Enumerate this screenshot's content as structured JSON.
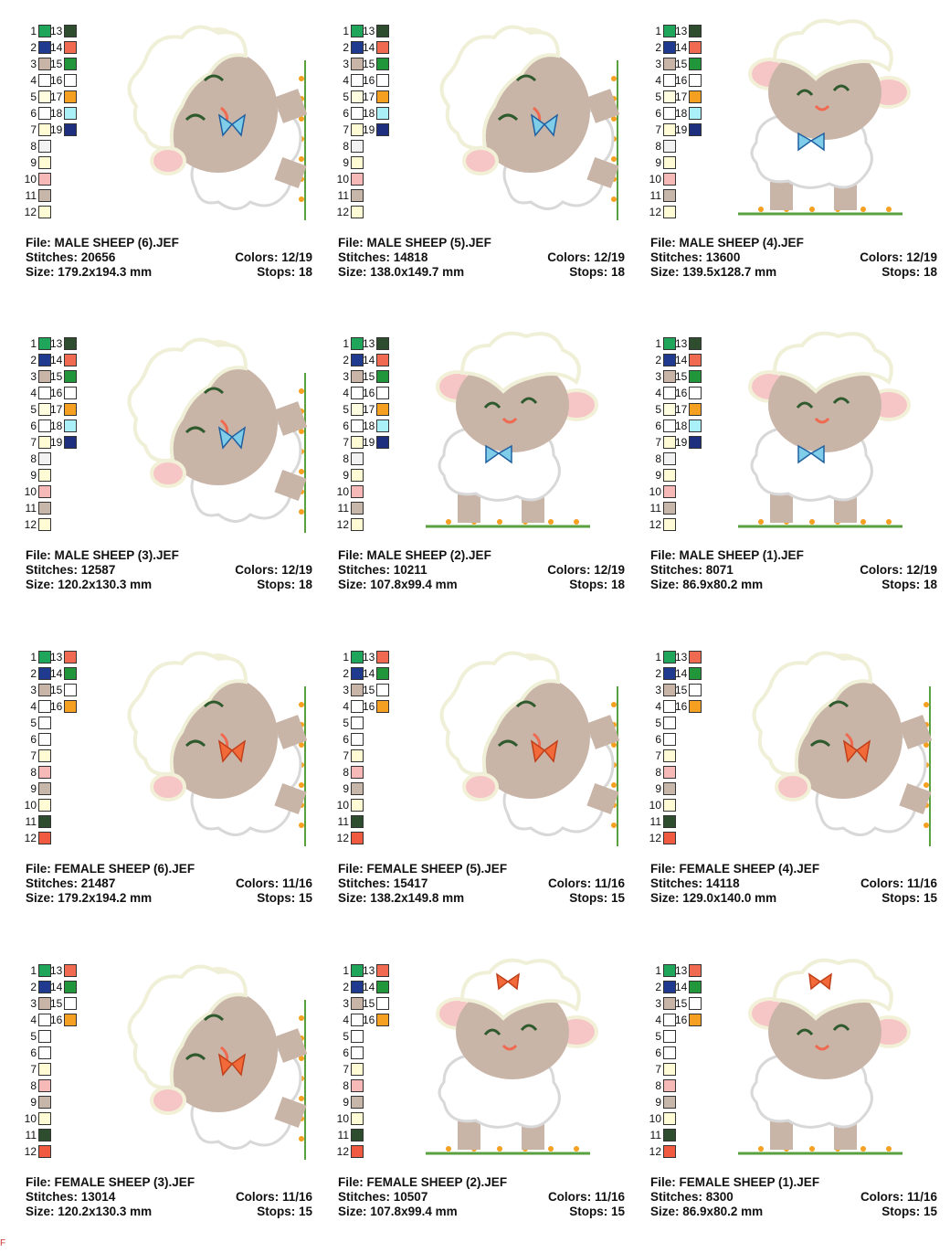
{
  "swatch_colors": {
    "1": "#1fa65a",
    "2": "#1f3a8f",
    "3": "#c9b5a8",
    "4": "#ffffff",
    "5": "#fffde0",
    "6": "#ffffff",
    "7": "#fffbd5",
    "8": "#f2f2f2",
    "9": "#fffbd5",
    "10": "#f7b8b8",
    "11": "#c7b6aa",
    "12": "#fffbd5",
    "13": "#2e4d2e",
    "14": "#ef6a50",
    "15": "#22963a",
    "16": "#ffffff",
    "17": "#f5a020",
    "18": "#aaf0f8",
    "19": "#1f2f80",
    "f5": "#ffffff",
    "f6": "#ffffff",
    "f7": "#fffbd5",
    "f8": "#f7b8b8",
    "f9": "#c7b6aa",
    "f10": "#fffbd5",
    "f11": "#2e4d2e",
    "f12": "#ef5a40",
    "f13": "#ef6a50",
    "f14": "#22963a",
    "f15": "#ffffff",
    "f16": "#f5a020"
  },
  "labels": {
    "file": "File:",
    "stitches": "Stitches:",
    "size": "Size:",
    "colors": "Colors:",
    "stops": "Stops:"
  },
  "designs": [
    {
      "file": "MALE SHEEP (6).JEF",
      "stitches": "20656",
      "size": "179.2x194.3 mm",
      "colors": "12/19",
      "stops": "18",
      "gender": "male",
      "pose": "peek"
    },
    {
      "file": "MALE SHEEP (5).JEF",
      "stitches": "14818",
      "size": "138.0x149.7 mm",
      "colors": "12/19",
      "stops": "18",
      "gender": "male",
      "pose": "peek"
    },
    {
      "file": "MALE SHEEP (4).JEF",
      "stitches": "13600",
      "size": "139.5x128.7 mm",
      "colors": "12/19",
      "stops": "18",
      "gender": "male",
      "pose": "stand"
    },
    {
      "file": "MALE SHEEP (3).JEF",
      "stitches": "12587",
      "size": "120.2x130.3 mm",
      "colors": "12/19",
      "stops": "18",
      "gender": "male",
      "pose": "peek"
    },
    {
      "file": "MALE SHEEP (2).JEF",
      "stitches": "10211",
      "size": "107.8x99.4 mm",
      "colors": "12/19",
      "stops": "18",
      "gender": "male",
      "pose": "stand"
    },
    {
      "file": "MALE SHEEP (1).JEF",
      "stitches": "8071",
      "size": "86.9x80.2 mm",
      "colors": "12/19",
      "stops": "18",
      "gender": "male",
      "pose": "stand"
    },
    {
      "file": "FEMALE SHEEP (6).JEF",
      "stitches": "21487",
      "size": "179.2x194.2 mm",
      "colors": "11/16",
      "stops": "15",
      "gender": "female",
      "pose": "peek"
    },
    {
      "file": "FEMALE SHEEP (5).JEF",
      "stitches": "15417",
      "size": "138.2x149.8 mm",
      "colors": "11/16",
      "stops": "15",
      "gender": "female",
      "pose": "peek"
    },
    {
      "file": "FEMALE SHEEP (4).JEF",
      "stitches": "14118",
      "size": "129.0x140.0 mm",
      "colors": "11/16",
      "stops": "15",
      "gender": "female",
      "pose": "peek"
    },
    {
      "file": "FEMALE SHEEP (3).JEF",
      "stitches": "13014",
      "size": "120.2x130.3 mm",
      "colors": "11/16",
      "stops": "15",
      "gender": "female",
      "pose": "peek"
    },
    {
      "file": "FEMALE SHEEP (2).JEF",
      "stitches": "10507",
      "size": "107.8x99.4 mm",
      "colors": "11/16",
      "stops": "15",
      "gender": "female",
      "pose": "stand"
    },
    {
      "file": "FEMALE SHEEP (1).JEF",
      "stitches": "8300",
      "size": "86.9x80.2 mm",
      "colors": "11/16",
      "stops": "15",
      "gender": "female",
      "pose": "stand"
    }
  ],
  "palettes": {
    "male": {
      "left": [
        "1",
        "2",
        "3",
        "4",
        "5",
        "6",
        "7",
        "8",
        "9",
        "10",
        "11",
        "12"
      ],
      "right": [
        "13",
        "14",
        "15",
        "16",
        "17",
        "18",
        "19"
      ],
      "left_colors": [
        "1",
        "2",
        "3",
        "4",
        "5",
        "6",
        "7",
        "8",
        "9",
        "10",
        "11",
        "12"
      ],
      "right_colors": [
        "13",
        "14",
        "15",
        "16",
        "17",
        "18",
        "19"
      ]
    },
    "female": {
      "left": [
        "1",
        "2",
        "3",
        "4",
        "5",
        "6",
        "7",
        "8",
        "9",
        "10",
        "11",
        "12"
      ],
      "right": [
        "13",
        "14",
        "15",
        "16"
      ],
      "left_colors": [
        "1",
        "2",
        "3",
        "4",
        "f5",
        "f6",
        "f7",
        "f8",
        "f9",
        "f10",
        "f11",
        "f12"
      ],
      "right_colors": [
        "f13",
        "f14",
        "f15",
        "f16"
      ]
    }
  },
  "edge_mark": "F"
}
